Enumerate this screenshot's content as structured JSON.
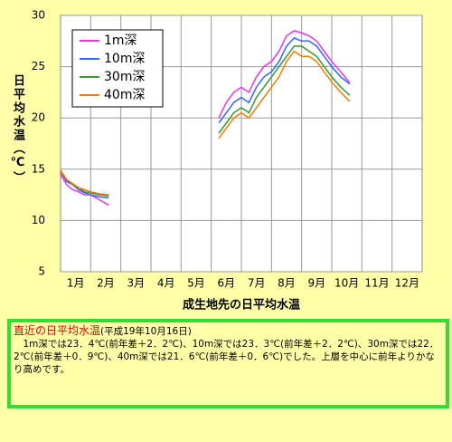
{
  "chart_data": {
    "type": "line",
    "title": "成生地先の日平均水温",
    "y_label": "日平均水温（℃）",
    "categories": [
      "1月",
      "2月",
      "3月",
      "4月",
      "5月",
      "6月",
      "7月",
      "8月",
      "9月",
      "10月",
      "11月",
      "12月"
    ],
    "xlim": [
      1,
      13
    ],
    "x": [
      1.0,
      1.2,
      1.4,
      1.6,
      1.8,
      2.0,
      2.3,
      2.6,
      4.0,
      6.25,
      6.5,
      6.75,
      7.0,
      7.25,
      7.5,
      7.75,
      8.0,
      8.25,
      8.5,
      8.75,
      9.0,
      9.25,
      9.5,
      9.75,
      10.0,
      10.3,
      10.6
    ],
    "ylim": [
      5,
      30
    ],
    "yticks": [
      5,
      10,
      15,
      20,
      25,
      30
    ],
    "grid": true,
    "legend": "upper-left",
    "series": [
      {
        "name": "1m深",
        "color": "#e633e6",
        "values": [
          14.5,
          13.5,
          13,
          12.8,
          12.5,
          12.5,
          12,
          11.5,
          null,
          20,
          21.5,
          22.5,
          23,
          22.5,
          24,
          25,
          25.5,
          26.5,
          28,
          28.5,
          28.3,
          28,
          27.5,
          26.5,
          25.5,
          24.5,
          23.4
        ]
      },
      {
        "name": "10m深",
        "color": "#3366ff",
        "values": [
          14.8,
          13.8,
          13.5,
          13,
          12.7,
          12.5,
          12.3,
          12.2,
          null,
          19.5,
          20.5,
          21.5,
          22,
          21.5,
          23,
          24,
          24.5,
          25.5,
          27,
          27.8,
          27.5,
          27.5,
          27,
          26,
          25,
          24,
          23.3
        ]
      },
      {
        "name": "30m深",
        "color": "#339933",
        "values": [
          14.8,
          14,
          13.5,
          13.2,
          12.8,
          12.7,
          12.5,
          12.4,
          null,
          18.5,
          19.5,
          20.5,
          21,
          20.5,
          22,
          23,
          24,
          25,
          26,
          27,
          27,
          26.5,
          26,
          25,
          24,
          23,
          22.2
        ]
      },
      {
        "name": "40m深",
        "color": "#ff7700",
        "values": [
          14.9,
          14,
          13.6,
          13.2,
          13,
          12.8,
          12.6,
          12.5,
          null,
          18,
          19,
          20,
          20.5,
          20,
          21,
          22,
          23,
          24,
          25.5,
          26.5,
          26,
          26,
          25.5,
          24.5,
          23.5,
          22.5,
          21.6
        ]
      }
    ]
  },
  "note": {
    "heading": "直近の日平均水温",
    "date": "(平成19年10月16日)",
    "body": "　1m深では23．4℃(前年差＋2．2℃)、10m深では23．3℃(前年差＋2．2℃)、30m深では22．2℃(前年差＋0．9℃)、40m深では21．6℃(前年差＋0．6℃)でした。上層を中心に前年よりかなり高めです。"
  }
}
